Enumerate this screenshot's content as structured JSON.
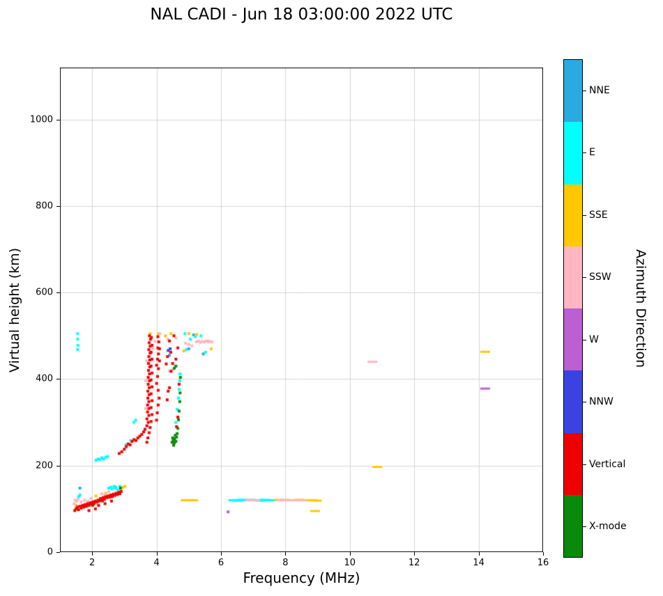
{
  "chart_data": {
    "type": "scatter",
    "title": "NAL CADI - Jun 18 03:00:00 2022 UTC",
    "xlabel": "Frequency (MHz)",
    "ylabel": "Virtual height (km)",
    "colorbar_label": "Azimuth Direction",
    "xlim": [
      1,
      16
    ],
    "ylim": [
      0,
      1120
    ],
    "xticks": [
      2,
      4,
      6,
      8,
      10,
      12,
      14,
      16
    ],
    "yticks": [
      0,
      200,
      400,
      600,
      800,
      1000
    ],
    "grid": true,
    "grid_color": "#d4d4d4",
    "categories": [
      {
        "label": "NNE",
        "color": "#29ABE2"
      },
      {
        "label": "E",
        "color": "#00FFFF"
      },
      {
        "label": "SSE",
        "color": "#FFC800"
      },
      {
        "label": "SSW",
        "color": "#FFB6C1"
      },
      {
        "label": "W",
        "color": "#BC5FD3"
      },
      {
        "label": "NNW",
        "color": "#3A43E2"
      },
      {
        "label": "Vertical",
        "color": "#EE0000"
      },
      {
        "label": "X-mode",
        "color": "#0A8A0A"
      }
    ],
    "series": [
      {
        "name": "NNE",
        "color": "#29ABE2",
        "points": [
          [
            1.62,
            148
          ],
          [
            2.72,
            150
          ],
          [
            4.4,
            455
          ],
          [
            5.0,
            470
          ],
          [
            5.15,
            502
          ],
          [
            5.45,
            458
          ]
        ],
        "dashes": [
          [
            6.5,
            120
          ],
          [
            7.25,
            120
          ]
        ]
      },
      {
        "name": "E",
        "color": "#00FFFF",
        "points": [
          [
            1.58,
            128
          ],
          [
            1.62,
            132
          ],
          [
            2.52,
            148
          ],
          [
            2.58,
            150
          ],
          [
            2.62,
            146
          ],
          [
            2.68,
            152
          ],
          [
            2.74,
            148
          ],
          [
            2.8,
            144
          ],
          [
            2.86,
            152
          ],
          [
            2.12,
            212
          ],
          [
            2.18,
            215
          ],
          [
            2.24,
            214
          ],
          [
            2.3,
            218
          ],
          [
            2.36,
            215
          ],
          [
            2.42,
            219
          ],
          [
            2.48,
            221
          ],
          [
            3.05,
            248
          ],
          [
            3.2,
            258
          ],
          [
            3.3,
            300
          ],
          [
            3.35,
            305
          ],
          [
            4.6,
            300
          ],
          [
            4.64,
            330
          ],
          [
            4.68,
            356
          ],
          [
            4.7,
            376
          ],
          [
            4.72,
            396
          ],
          [
            4.73,
            412
          ],
          [
            1.55,
            505
          ],
          [
            1.55,
            492
          ],
          [
            1.56,
            478
          ],
          [
            1.55,
            468
          ],
          [
            4.92,
            468
          ],
          [
            5.05,
            492
          ],
          [
            5.2,
            498
          ],
          [
            5.38,
            500
          ],
          [
            5.52,
            462
          ],
          [
            4.88,
            505
          ]
        ],
        "dashes": [
          [
            6.38,
            120
          ],
          [
            6.52,
            119
          ],
          [
            6.66,
            121
          ],
          [
            6.8,
            120
          ],
          [
            6.94,
            121
          ],
          [
            7.08,
            120
          ],
          [
            7.22,
            119
          ],
          [
            7.36,
            121
          ],
          [
            7.5,
            120
          ],
          [
            7.64,
            120
          ]
        ]
      },
      {
        "name": "SSE",
        "color": "#FFC800",
        "points": [
          [
            1.5,
            108
          ],
          [
            2.12,
            130
          ],
          [
            2.42,
            136
          ],
          [
            2.9,
            143
          ],
          [
            2.96,
            150
          ],
          [
            3.02,
            152
          ],
          [
            3.8,
            505
          ],
          [
            4.05,
            505
          ],
          [
            4.28,
            500
          ],
          [
            4.45,
            505
          ],
          [
            4.85,
            465
          ],
          [
            5.0,
            505
          ],
          [
            5.25,
            503
          ],
          [
            5.6,
            488
          ],
          [
            5.7,
            470
          ]
        ],
        "dashes": [
          [
            4.9,
            120
          ],
          [
            5.02,
            120
          ],
          [
            5.14,
            120
          ],
          [
            7.8,
            121
          ],
          [
            7.94,
            120
          ],
          [
            8.3,
            120
          ],
          [
            8.44,
            121
          ],
          [
            8.56,
            120
          ],
          [
            8.85,
            120
          ],
          [
            8.98,
            119
          ],
          [
            8.92,
            95
          ],
          [
            10.85,
            197
          ],
          [
            14.2,
            463
          ]
        ]
      },
      {
        "name": "SSW",
        "color": "#FFB6C1",
        "points": [
          [
            1.44,
            112
          ],
          [
            1.47,
            120
          ],
          [
            1.52,
            118
          ],
          [
            1.56,
            122
          ],
          [
            1.66,
            116
          ],
          [
            1.76,
            120
          ],
          [
            1.86,
            118
          ],
          [
            1.96,
            124
          ],
          [
            2.06,
            114
          ],
          [
            2.16,
            112
          ],
          [
            2.3,
            135
          ],
          [
            2.4,
            132
          ],
          [
            2.52,
            140
          ],
          [
            3.66,
            332
          ],
          [
            3.67,
            396
          ],
          [
            3.7,
            442
          ],
          [
            3.88,
            470
          ],
          [
            3.95,
            487
          ],
          [
            4.1,
            505
          ],
          [
            4.4,
            418
          ],
          [
            4.5,
            422
          ],
          [
            4.58,
            430
          ],
          [
            4.35,
            492
          ],
          [
            4.6,
            495
          ],
          [
            5.24,
            486
          ],
          [
            5.3,
            488
          ],
          [
            5.36,
            485
          ],
          [
            5.42,
            487
          ],
          [
            5.48,
            486
          ],
          [
            5.54,
            488
          ],
          [
            5.6,
            486
          ],
          [
            5.66,
            487
          ],
          [
            5.72,
            486
          ],
          [
            5.0,
            480
          ],
          [
            5.1,
            477
          ],
          [
            4.9,
            483
          ]
        ],
        "dashes": [
          [
            6.9,
            121
          ],
          [
            7.05,
            120
          ],
          [
            7.86,
            120
          ],
          [
            8.0,
            121
          ],
          [
            8.12,
            120
          ],
          [
            8.24,
            120
          ],
          [
            8.5,
            120
          ],
          [
            10.7,
            440
          ]
        ]
      },
      {
        "name": "W",
        "color": "#BC5FD3",
        "points": [
          [
            6.22,
            93
          ]
        ],
        "dashes": [
          [
            14.2,
            378
          ]
        ]
      },
      {
        "name": "NNW",
        "color": "#3A43E2",
        "points": [
          [
            2.26,
            122
          ],
          [
            4.36,
            466
          ],
          [
            4.42,
            470
          ]
        ],
        "dashes": []
      },
      {
        "name": "X-mode",
        "color": "#0A8A0A",
        "points": [
          [
            2.02,
            108
          ],
          [
            2.32,
            118
          ],
          [
            2.62,
            128
          ],
          [
            2.88,
            148
          ],
          [
            4.48,
            254
          ],
          [
            4.52,
            258
          ],
          [
            4.5,
            264
          ],
          [
            4.55,
            252
          ],
          [
            4.56,
            262
          ],
          [
            4.6,
            256
          ],
          [
            4.62,
            266
          ],
          [
            4.58,
            270
          ],
          [
            4.64,
            274
          ],
          [
            4.53,
            247
          ],
          [
            4.66,
            286
          ],
          [
            4.68,
            306
          ],
          [
            4.7,
            326
          ],
          [
            4.72,
            348
          ],
          [
            4.73,
            368
          ],
          [
            4.74,
            404
          ],
          [
            4.55,
            425
          ],
          [
            4.6,
            430
          ]
        ],
        "dashes": []
      },
      {
        "name": "Vertical",
        "color": "#EE0000",
        "points": [
          [
            1.46,
            96
          ],
          [
            1.5,
            100
          ],
          [
            1.54,
            104
          ],
          [
            1.58,
            98
          ],
          [
            1.62,
            106
          ],
          [
            1.66,
            102
          ],
          [
            1.7,
            108
          ],
          [
            1.74,
            104
          ],
          [
            1.78,
            110
          ],
          [
            1.82,
            106
          ],
          [
            1.86,
            112
          ],
          [
            1.9,
            108
          ],
          [
            1.94,
            114
          ],
          [
            1.98,
            110
          ],
          [
            2.02,
            116
          ],
          [
            2.06,
            112
          ],
          [
            2.1,
            118
          ],
          [
            2.14,
            116
          ],
          [
            2.18,
            120
          ],
          [
            2.22,
            118
          ],
          [
            2.26,
            124
          ],
          [
            2.3,
            120
          ],
          [
            2.34,
            126
          ],
          [
            2.38,
            122
          ],
          [
            2.42,
            128
          ],
          [
            2.46,
            126
          ],
          [
            2.5,
            130
          ],
          [
            2.54,
            127
          ],
          [
            2.58,
            132
          ],
          [
            2.62,
            129
          ],
          [
            2.66,
            134
          ],
          [
            2.7,
            131
          ],
          [
            2.74,
            136
          ],
          [
            2.78,
            133
          ],
          [
            2.82,
            138
          ],
          [
            2.86,
            135
          ],
          [
            2.9,
            140
          ],
          [
            2.2,
            108
          ],
          [
            2.4,
            112
          ],
          [
            2.6,
            118
          ],
          [
            1.9,
            96
          ],
          [
            2.1,
            100
          ],
          [
            2.84,
            228
          ],
          [
            2.92,
            232
          ],
          [
            3.0,
            238
          ],
          [
            3.06,
            244
          ],
          [
            3.12,
            250
          ],
          [
            3.18,
            248
          ],
          [
            3.24,
            256
          ],
          [
            3.3,
            260
          ],
          [
            3.36,
            258
          ],
          [
            3.42,
            264
          ],
          [
            3.48,
            268
          ],
          [
            3.54,
            272
          ],
          [
            3.6,
            278
          ],
          [
            3.64,
            284
          ],
          [
            3.7,
            292
          ],
          [
            3.74,
            300
          ],
          [
            3.7,
            308
          ],
          [
            3.76,
            316
          ],
          [
            3.72,
            324
          ],
          [
            3.76,
            332
          ],
          [
            3.72,
            340
          ],
          [
            3.76,
            348
          ],
          [
            3.73,
            356
          ],
          [
            3.77,
            364
          ],
          [
            3.73,
            372
          ],
          [
            3.77,
            380
          ],
          [
            3.74,
            388
          ],
          [
            3.78,
            396
          ],
          [
            3.74,
            404
          ],
          [
            3.78,
            412
          ],
          [
            3.75,
            420
          ],
          [
            3.79,
            428
          ],
          [
            3.75,
            436
          ],
          [
            3.79,
            444
          ],
          [
            3.76,
            452
          ],
          [
            3.8,
            460
          ],
          [
            3.76,
            468
          ],
          [
            3.8,
            476
          ],
          [
            3.77,
            484
          ],
          [
            3.81,
            492
          ],
          [
            3.78,
            500
          ],
          [
            3.84,
            496
          ],
          [
            3.86,
            478
          ],
          [
            3.83,
            462
          ],
          [
            3.86,
            446
          ],
          [
            3.83,
            430
          ],
          [
            3.86,
            414
          ],
          [
            3.83,
            398
          ],
          [
            3.86,
            382
          ],
          [
            3.83,
            366
          ],
          [
            3.86,
            350
          ],
          [
            3.83,
            334
          ],
          [
            3.86,
            318
          ],
          [
            3.83,
            302
          ],
          [
            3.8,
            288
          ],
          [
            3.77,
            276
          ],
          [
            3.73,
            264
          ],
          [
            3.7,
            254
          ],
          [
            4.0,
            432
          ],
          [
            4.03,
            446
          ],
          [
            4.06,
            458
          ],
          [
            4.04,
            472
          ],
          [
            4.07,
            486
          ],
          [
            4.04,
            498
          ],
          [
            4.09,
            470
          ],
          [
            4.09,
            442
          ],
          [
            4.06,
            424
          ],
          [
            4.03,
            406
          ],
          [
            4.0,
            390
          ],
          [
            4.05,
            374
          ],
          [
            4.08,
            356
          ],
          [
            4.05,
            340
          ],
          [
            4.02,
            322
          ],
          [
            4.0,
            305
          ],
          [
            4.34,
            452
          ],
          [
            4.44,
            462
          ],
          [
            4.5,
            436
          ],
          [
            4.6,
            446
          ],
          [
            4.66,
            472
          ],
          [
            4.54,
            500
          ],
          [
            4.4,
            488
          ],
          [
            4.3,
            435
          ],
          [
            4.36,
            372
          ],
          [
            4.4,
            380
          ],
          [
            4.33,
            352
          ],
          [
            4.45,
            418
          ],
          [
            4.62,
            290
          ],
          [
            4.66,
            312
          ],
          [
            4.7,
            388
          ]
        ],
        "dashes": []
      }
    ]
  }
}
